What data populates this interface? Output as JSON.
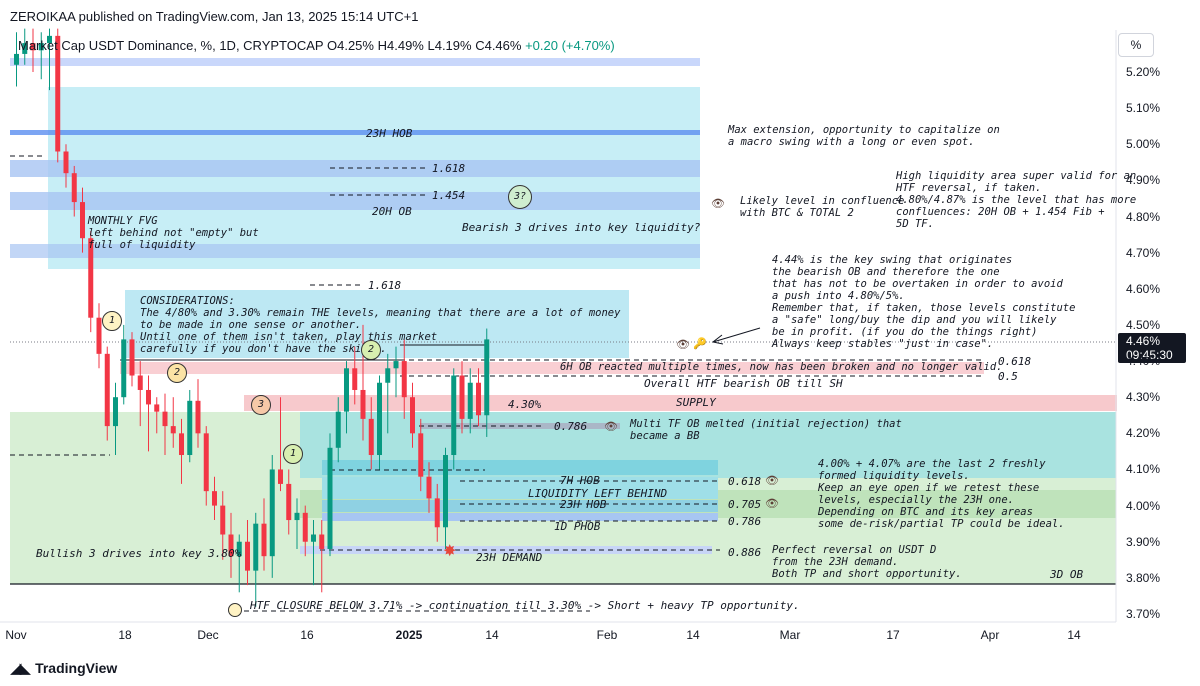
{
  "header": {
    "published": "ZEROIKAA published on TradingView.com, Jan 13, 2025 15:14 UTC+1",
    "symbol": "Market Cap USDT Dominance, %, 1D, CRYPTOCAP",
    "ohlc_open": "O4.25%",
    "ohlc_high": "H4.49%",
    "ohlc_low": "L4.19%",
    "ohlc_close": "C4.46%",
    "change": "+0.20 (+4.70%)"
  },
  "axis": {
    "unit_button": "%",
    "price_tag_value": "4.46%",
    "price_tag_time": "09:45:30",
    "logo_text": "TradingView"
  },
  "colors": {
    "up": "#089981",
    "down": "#f23645",
    "fvg_zone": "#c7eef6",
    "ob_zone": "#b7c9f4",
    "supply": "#f7c9cc",
    "demand": "#d8efd5",
    "teal_zone": "#a9e3e0"
  },
  "chart_data": {
    "type": "candlestick",
    "title": "Market Cap USDT Dominance, %, 1D, CRYPTOCAP",
    "ylabel": "%",
    "ylim": [
      3.66,
      5.32
    ],
    "y_ticks": [
      "5.20%",
      "5.10%",
      "5.00%",
      "4.90%",
      "4.80%",
      "4.70%",
      "4.60%",
      "4.50%",
      "4.40%",
      "4.30%",
      "4.20%",
      "4.10%",
      "4.00%",
      "3.90%",
      "3.80%",
      "3.70%"
    ],
    "x_ticks": [
      "Nov",
      "18",
      "Dec",
      "16",
      "2025",
      "14",
      "Feb",
      "14",
      "Mar",
      "17",
      "Apr",
      "14"
    ],
    "candles": [
      {
        "o": 5.22,
        "h": 5.31,
        "l": 5.16,
        "c": 5.25
      },
      {
        "o": 5.25,
        "h": 5.32,
        "l": 5.22,
        "c": 5.28
      },
      {
        "o": 5.28,
        "h": 5.32,
        "l": 5.2,
        "c": 5.26
      },
      {
        "o": 5.26,
        "h": 5.31,
        "l": 5.18,
        "c": 5.28
      },
      {
        "o": 5.28,
        "h": 5.32,
        "l": 5.15,
        "c": 5.3
      },
      {
        "o": 5.3,
        "h": 5.32,
        "l": 4.95,
        "c": 4.98
      },
      {
        "o": 4.98,
        "h": 5.0,
        "l": 4.88,
        "c": 4.92
      },
      {
        "o": 4.92,
        "h": 4.94,
        "l": 4.8,
        "c": 4.84
      },
      {
        "o": 4.84,
        "h": 4.88,
        "l": 4.7,
        "c": 4.74
      },
      {
        "o": 4.74,
        "h": 4.76,
        "l": 4.48,
        "c": 4.52
      },
      {
        "o": 4.52,
        "h": 4.56,
        "l": 4.38,
        "c": 4.42
      },
      {
        "o": 4.42,
        "h": 4.44,
        "l": 4.18,
        "c": 4.22
      },
      {
        "o": 4.22,
        "h": 4.34,
        "l": 4.14,
        "c": 4.3
      },
      {
        "o": 4.3,
        "h": 4.5,
        "l": 4.28,
        "c": 4.46
      },
      {
        "o": 4.46,
        "h": 4.48,
        "l": 4.33,
        "c": 4.36
      },
      {
        "o": 4.36,
        "h": 4.4,
        "l": 4.22,
        "c": 4.32
      },
      {
        "o": 4.32,
        "h": 4.36,
        "l": 4.15,
        "c": 4.28
      },
      {
        "o": 4.28,
        "h": 4.3,
        "l": 4.2,
        "c": 4.26
      },
      {
        "o": 4.26,
        "h": 4.31,
        "l": 4.14,
        "c": 4.22
      },
      {
        "o": 4.22,
        "h": 4.3,
        "l": 4.16,
        "c": 4.2
      },
      {
        "o": 4.2,
        "h": 4.24,
        "l": 4.06,
        "c": 4.14
      },
      {
        "o": 4.14,
        "h": 4.32,
        "l": 4.12,
        "c": 4.29
      },
      {
        "o": 4.29,
        "h": 4.35,
        "l": 4.16,
        "c": 4.2
      },
      {
        "o": 4.2,
        "h": 4.22,
        "l": 4.0,
        "c": 4.04
      },
      {
        "o": 4.04,
        "h": 4.08,
        "l": 3.96,
        "c": 4.0
      },
      {
        "o": 4.0,
        "h": 4.04,
        "l": 3.85,
        "c": 3.92
      },
      {
        "o": 3.92,
        "h": 3.98,
        "l": 3.8,
        "c": 3.86
      },
      {
        "o": 3.86,
        "h": 3.92,
        "l": 3.76,
        "c": 3.9
      },
      {
        "o": 3.9,
        "h": 3.96,
        "l": 3.78,
        "c": 3.82
      },
      {
        "o": 3.82,
        "h": 3.98,
        "l": 3.72,
        "c": 3.95
      },
      {
        "o": 3.95,
        "h": 4.02,
        "l": 3.82,
        "c": 3.86
      },
      {
        "o": 3.86,
        "h": 4.14,
        "l": 3.8,
        "c": 4.1
      },
      {
        "o": 4.1,
        "h": 4.3,
        "l": 4.04,
        "c": 4.06
      },
      {
        "o": 4.06,
        "h": 4.1,
        "l": 3.92,
        "c": 3.96
      },
      {
        "o": 3.96,
        "h": 4.02,
        "l": 3.88,
        "c": 3.98
      },
      {
        "o": 3.98,
        "h": 4.0,
        "l": 3.86,
        "c": 3.9
      },
      {
        "o": 3.9,
        "h": 3.96,
        "l": 3.78,
        "c": 3.92
      },
      {
        "o": 3.92,
        "h": 3.96,
        "l": 3.76,
        "c": 3.88
      },
      {
        "o": 3.88,
        "h": 4.2,
        "l": 3.86,
        "c": 4.16
      },
      {
        "o": 4.16,
        "h": 4.3,
        "l": 4.12,
        "c": 4.26
      },
      {
        "o": 4.26,
        "h": 4.4,
        "l": 4.2,
        "c": 4.38
      },
      {
        "o": 4.38,
        "h": 4.44,
        "l": 4.28,
        "c": 4.32
      },
      {
        "o": 4.32,
        "h": 4.5,
        "l": 4.18,
        "c": 4.24
      },
      {
        "o": 4.24,
        "h": 4.3,
        "l": 4.1,
        "c": 4.14
      },
      {
        "o": 4.14,
        "h": 4.36,
        "l": 4.1,
        "c": 4.34
      },
      {
        "o": 4.34,
        "h": 4.42,
        "l": 4.2,
        "c": 4.38
      },
      {
        "o": 4.38,
        "h": 4.44,
        "l": 4.3,
        "c": 4.4
      },
      {
        "o": 4.4,
        "h": 4.46,
        "l": 4.24,
        "c": 4.3
      },
      {
        "o": 4.3,
        "h": 4.34,
        "l": 4.16,
        "c": 4.2
      },
      {
        "o": 4.2,
        "h": 4.24,
        "l": 4.04,
        "c": 4.08
      },
      {
        "o": 4.08,
        "h": 4.12,
        "l": 3.98,
        "c": 4.02
      },
      {
        "o": 4.02,
        "h": 4.06,
        "l": 3.9,
        "c": 3.94
      },
      {
        "o": 3.94,
        "h": 4.16,
        "l": 3.88,
        "c": 4.14
      },
      {
        "o": 4.14,
        "h": 4.38,
        "l": 4.1,
        "c": 4.36
      },
      {
        "o": 4.36,
        "h": 4.4,
        "l": 4.2,
        "c": 4.24
      },
      {
        "o": 4.24,
        "h": 4.38,
        "l": 4.2,
        "c": 4.34
      },
      {
        "o": 4.34,
        "h": 4.38,
        "l": 4.22,
        "c": 4.25
      },
      {
        "o": 4.25,
        "h": 4.49,
        "l": 4.19,
        "c": 4.46
      }
    ]
  },
  "annotations": {
    "hob_23h": "23H HOB",
    "fib_1618_top": "1.618",
    "fib_1454": "1.454",
    "ob_20h": "20H OB",
    "circle_3q": "3?",
    "bearish_3_drives": "Bearish 3 drives into key liquidity?",
    "monthly_fvg": "MONTHLY FVG\nleft behind not \"empty\" but\nfull of liquidity",
    "fib_1618_mid": "1.618",
    "considerations": "CONSIDERATIONS:\nThe 4/80% and 3.30% remain THE levels, meaning that there are a lot of money\nto be made in one sense or another.\nUntil one of them isn't taken, play this market\ncarefully if you don't have the skills.",
    "max_extension": "Max extension, opportunity to capitalize on\na macro swing with a long or even spot.",
    "likely_level": "Likely level in confluence\nwith BTC & TOTAL 2",
    "high_liquidity": "High liquidity area super valid for an\nHTF reversal, if taken.\n4.80%/4.87% is the level that has more\nconfluences: 20H OB + 1.454 Fib +\n5D TF.",
    "key_swing": "4.44% is the key swing that originates\nthe bearish OB and therefore the one\nthat has not to be overtaken in order to avoid\na push into 4.80%/5%.\nRemember that, if taken, those levels constitute\na \"safe\" long/buy the dip and you will likely\nbe in profit. (if you do the things right)\nAlways keep stables \"just in case\".",
    "ob_6h": "6H OB reacted multiple times, now has been broken and no longer valid.",
    "fib_0618": "0.618",
    "fib_05": "0.5",
    "htf_bearish_ob": "Overall HTF bearish OB till SH",
    "pct_430": "4.30%",
    "supply": "SUPPLY",
    "fib_0786": "0.786",
    "multi_tf_ob": "Multi TF OB melted (initial rejection) that\nbecame a BB",
    "hob_7h": "7H HOB",
    "liquidity_left": "LIQUIDITY LEFT BEHIND",
    "hob_23h_low": "23H HOB",
    "phob_1d": "1D PHOB",
    "demand_23h": "23H DEMAND",
    "fib_0618_low": "0.618",
    "fib_0705": "0.705",
    "fib_0786_low": "0.786",
    "fib_0886": "0.886",
    "liquidity_levels": "4.00% + 4.07% are the last 2 freshly\nformed liquidity levels.\nKeep an eye open if we retest these\nlevels, especially the 23H one.\nDepending on BTC and its key areas\nsome de-risk/partial TP could be ideal.",
    "perfect_reversal": "Perfect reversal on USDT D\nfrom the 23H demand.\nBoth TP and short opportunity.",
    "ob_3d": "3D OB",
    "bullish_3_drives": "Bullish 3 drives into key 3.80%",
    "htf_closure": "HTF CLOSURE BELOW 3.71% -> continuation till 3.30% -> Short + heavy TP opportunity.",
    "c1a": "1",
    "c2a": "2",
    "c3a": "3",
    "c1b": "1",
    "c2b": "2",
    "eye": "👁"
  }
}
